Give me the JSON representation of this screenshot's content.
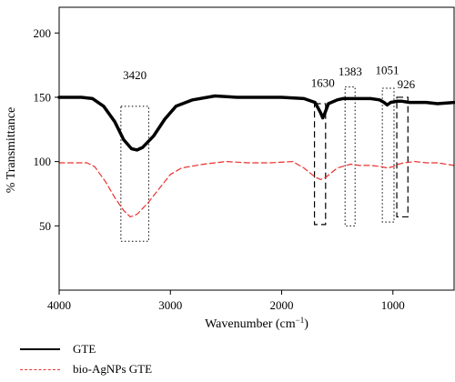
{
  "chart_data": {
    "type": "line",
    "xlabel": "Wavenumber (cm",
    "xlabel_sup": "−1",
    "xlabel_end": ")",
    "ylabel": "% Transmittance",
    "xlim": [
      4000,
      450
    ],
    "ylim": [
      0,
      220
    ],
    "x_ticks": [
      4000,
      3000,
      2000,
      1000
    ],
    "y_ticks": [
      50,
      100,
      150,
      200
    ],
    "grid": false,
    "legend_position": "bottom-left",
    "series": [
      {
        "name": "GTE",
        "color": "#000000",
        "style": "solid",
        "points": [
          [
            4000,
            150
          ],
          [
            3800,
            150
          ],
          [
            3700,
            149
          ],
          [
            3600,
            143
          ],
          [
            3500,
            131
          ],
          [
            3420,
            117
          ],
          [
            3350,
            110
          ],
          [
            3300,
            109
          ],
          [
            3250,
            111
          ],
          [
            3150,
            120
          ],
          [
            3050,
            133
          ],
          [
            2950,
            143
          ],
          [
            2800,
            148
          ],
          [
            2600,
            151
          ],
          [
            2400,
            150
          ],
          [
            2200,
            150
          ],
          [
            2000,
            150
          ],
          [
            1800,
            149
          ],
          [
            1700,
            146
          ],
          [
            1650,
            138
          ],
          [
            1630,
            134
          ],
          [
            1610,
            138
          ],
          [
            1580,
            145
          ],
          [
            1500,
            148
          ],
          [
            1450,
            149
          ],
          [
            1383,
            149
          ],
          [
            1300,
            149
          ],
          [
            1200,
            149
          ],
          [
            1120,
            148
          ],
          [
            1080,
            146
          ],
          [
            1051,
            144
          ],
          [
            1020,
            146
          ],
          [
            960,
            147
          ],
          [
            926,
            147
          ],
          [
            850,
            146
          ],
          [
            700,
            146
          ],
          [
            600,
            145
          ],
          [
            450,
            146
          ]
        ]
      },
      {
        "name": "bio-AgNPs GTE",
        "color": "#e8312f",
        "style": "dashed",
        "points": [
          [
            4000,
            99
          ],
          [
            3750,
            99
          ],
          [
            3680,
            96
          ],
          [
            3580,
            84
          ],
          [
            3500,
            72
          ],
          [
            3420,
            62
          ],
          [
            3360,
            57
          ],
          [
            3300,
            59
          ],
          [
            3200,
            68
          ],
          [
            3100,
            79
          ],
          [
            3000,
            90
          ],
          [
            2900,
            95
          ],
          [
            2700,
            98
          ],
          [
            2500,
            100
          ],
          [
            2300,
            99
          ],
          [
            2100,
            99
          ],
          [
            1900,
            100
          ],
          [
            1800,
            95
          ],
          [
            1700,
            88
          ],
          [
            1650,
            86
          ],
          [
            1600,
            88
          ],
          [
            1500,
            95
          ],
          [
            1420,
            97
          ],
          [
            1380,
            98
          ],
          [
            1300,
            97
          ],
          [
            1200,
            97
          ],
          [
            1100,
            96
          ],
          [
            1051,
            95
          ],
          [
            1000,
            96
          ],
          [
            950,
            98
          ],
          [
            900,
            99
          ],
          [
            800,
            100
          ],
          [
            700,
            99
          ],
          [
            600,
            99
          ],
          [
            450,
            97
          ]
        ]
      }
    ],
    "annotations": [
      {
        "text": "3420",
        "box": {
          "x1": 3445,
          "x2": 3195,
          "y1": 38,
          "y2": 143
        },
        "style": "dotted",
        "label_at": [
          3320,
          164
        ]
      },
      {
        "text": "1630",
        "box": {
          "x1": 1705,
          "x2": 1605,
          "y1": 51,
          "y2": 145
        },
        "style": "dashed",
        "label_at": [
          1630,
          158
        ]
      },
      {
        "text": "1383",
        "box": {
          "x1": 1430,
          "x2": 1340,
          "y1": 50,
          "y2": 158
        },
        "style": "dotted",
        "label_at": [
          1383,
          167
        ]
      },
      {
        "text": "1051",
        "box": {
          "x1": 1095,
          "x2": 990,
          "y1": 53,
          "y2": 157
        },
        "style": "dotted",
        "label_at": [
          1051,
          168
        ]
      },
      {
        "text": "926",
        "box": {
          "x1": 965,
          "x2": 865,
          "y1": 57,
          "y2": 150
        },
        "style": "dashed",
        "label_at": [
          880,
          157
        ]
      }
    ]
  }
}
